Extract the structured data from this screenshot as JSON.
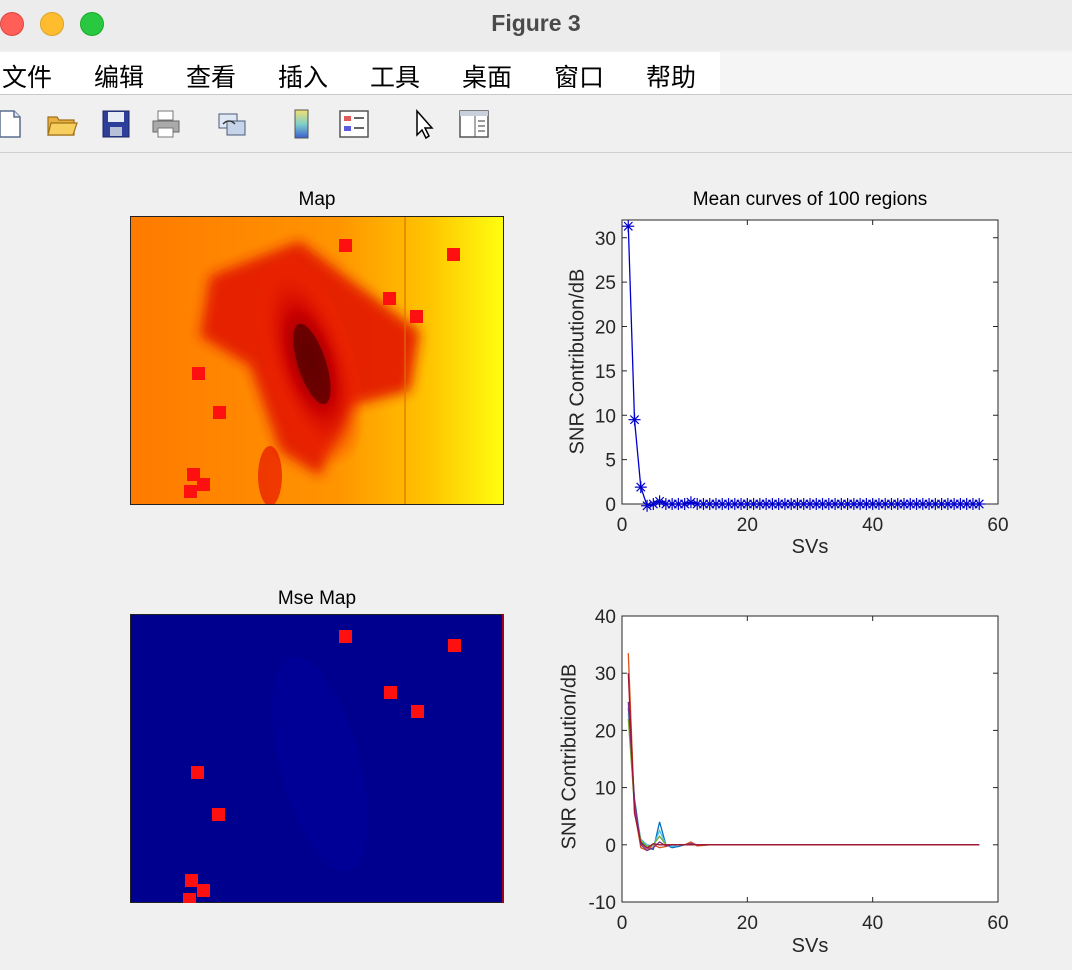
{
  "window": {
    "title": "Figure 3"
  },
  "menu": [
    "文件",
    "编辑",
    "查看",
    "插入",
    "工具",
    "桌面",
    "窗口",
    "帮助"
  ],
  "toolbar": [
    "new-file-icon",
    "open-folder-icon",
    "save-icon",
    "print-icon",
    "link-plot-icon",
    "colorbar-icon",
    "legend-icon",
    "pointer-icon",
    "property-inspector-icon"
  ],
  "colors": {
    "map_bg": "#ff8a00",
    "marker": "#ff1010",
    "mse_bg": "#00008f",
    "line_blue": "#0000cc"
  },
  "chart_data": [
    {
      "type": "heatmap",
      "title": "Map",
      "colormap": "hot",
      "markers": "red squares (100 regions sample)"
    },
    {
      "type": "line",
      "title": "Mean curves of 100 regions",
      "xlabel": "SVs",
      "ylabel": "SNR Contribution/dB",
      "xlim": [
        0,
        60
      ],
      "ylim": [
        0,
        32
      ],
      "xticks": [
        0,
        20,
        40,
        60
      ],
      "yticks": [
        0,
        5,
        10,
        15,
        20,
        25,
        30
      ],
      "marker": "*",
      "series": [
        {
          "x": [
            1,
            2,
            3,
            4,
            5,
            6,
            7,
            8,
            9,
            10,
            11,
            12,
            13,
            14,
            15,
            16,
            17,
            18,
            19,
            20,
            21,
            22,
            23,
            24,
            25,
            26,
            27,
            28,
            29,
            30,
            31,
            32,
            33,
            34,
            35,
            36,
            37,
            38,
            39,
            40,
            41,
            42,
            43,
            44,
            45,
            46,
            47,
            48,
            49,
            50,
            51,
            52,
            53,
            54,
            55,
            56,
            57
          ],
          "values": [
            31.3,
            9.5,
            1.9,
            -0.2,
            0,
            0.3,
            0,
            0,
            0,
            0,
            0.2,
            0,
            0,
            0,
            0,
            0,
            0,
            0,
            0,
            0,
            0,
            0,
            0,
            0,
            0,
            0,
            0,
            0,
            0,
            0,
            0,
            0,
            0,
            0,
            0,
            0,
            0,
            0,
            0,
            0,
            0,
            0,
            0,
            0,
            0,
            0,
            0,
            0,
            0,
            0,
            0,
            0,
            0,
            0,
            0,
            0,
            0
          ]
        }
      ]
    },
    {
      "type": "heatmap",
      "title": "Mse Map",
      "colormap": "jet",
      "markers": "red squares"
    },
    {
      "type": "line",
      "title": "",
      "xlabel": "SVs",
      "ylabel": "SNR Contribution/dB",
      "xlim": [
        0,
        60
      ],
      "ylim": [
        -10,
        40
      ],
      "xticks": [
        0,
        20,
        40,
        60
      ],
      "yticks": [
        -10,
        0,
        10,
        20,
        30,
        40
      ],
      "series": [
        {
          "color": "#0072bd",
          "x": [
            1,
            2,
            3,
            4,
            5,
            6,
            7,
            8,
            9,
            10,
            11,
            12,
            14,
            16,
            20,
            30,
            40,
            50,
            57
          ],
          "values": [
            24,
            8,
            0.5,
            -0.5,
            -0.8,
            4,
            0,
            -0.5,
            -0.3,
            0,
            0.2,
            0,
            0,
            0,
            0,
            0,
            0,
            0,
            0
          ]
        },
        {
          "color": "#d95319",
          "x": [
            1,
            2,
            3,
            4,
            5,
            6,
            7,
            8,
            9,
            10,
            11,
            12,
            14,
            16,
            20,
            30,
            40,
            50,
            57
          ],
          "values": [
            33.5,
            6,
            -0.5,
            -1,
            0,
            -0.5,
            -0.3,
            0,
            0,
            0,
            0.5,
            -0.2,
            0,
            0,
            0,
            0,
            0,
            0,
            0
          ]
        },
        {
          "color": "#4dbeee",
          "x": [
            1,
            2,
            3,
            4,
            5,
            6,
            7,
            8,
            9,
            10,
            11,
            12,
            14,
            16,
            20,
            30,
            40,
            50,
            57
          ],
          "values": [
            23,
            7,
            1,
            0,
            -0.2,
            2.5,
            0,
            -0.3,
            0,
            0,
            0,
            0,
            0,
            0,
            0,
            0,
            0,
            0,
            0
          ]
        },
        {
          "color": "#77ac30",
          "x": [
            1,
            2,
            3,
            4,
            5,
            6,
            7,
            8,
            9,
            10,
            11,
            12,
            14,
            16,
            20,
            30,
            40,
            50,
            57
          ],
          "values": [
            22,
            6.5,
            0.8,
            -0.3,
            0,
            1.5,
            0,
            0,
            0,
            0,
            0,
            0,
            0,
            0,
            0,
            0,
            0,
            0,
            0
          ]
        },
        {
          "color": "#7e2f8e",
          "x": [
            1,
            2,
            3,
            4,
            5,
            6,
            7,
            8,
            9,
            10,
            11,
            12,
            14,
            16,
            20,
            30,
            40,
            50,
            57
          ],
          "values": [
            25,
            7.5,
            0,
            -1,
            -0.5,
            0.5,
            -0.2,
            0,
            0,
            0,
            0.2,
            0,
            0,
            0,
            0,
            0,
            0,
            0,
            0
          ]
        },
        {
          "color": "#a2142f",
          "x": [
            1,
            2,
            3,
            4,
            5,
            6,
            7,
            8,
            9,
            10,
            11,
            12,
            14,
            16,
            20,
            30,
            40,
            50,
            57
          ],
          "values": [
            30,
            5.5,
            0.3,
            -0.6,
            0.2,
            0,
            0,
            0,
            0,
            0,
            0,
            0,
            0,
            0,
            0,
            0,
            0,
            0,
            0
          ]
        }
      ]
    }
  ]
}
